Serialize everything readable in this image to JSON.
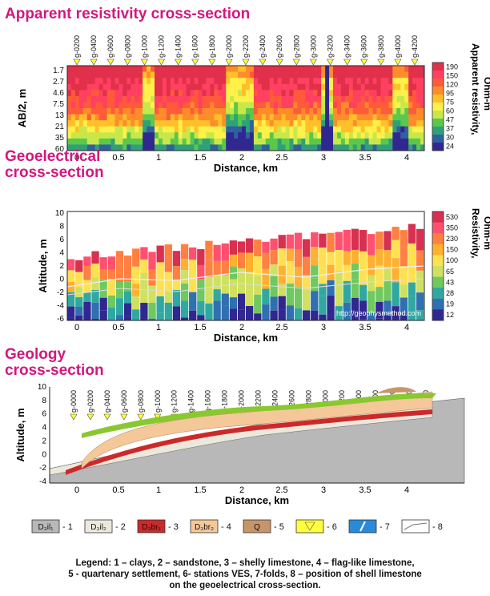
{
  "chart_data": [
    {
      "type": "heatmap",
      "title": "Apparent resistivity cross-section",
      "xlabel": "Distance, km",
      "ylabel": "AB/2, m",
      "xlim": [
        -0.5,
        4.25
      ],
      "x_ticks": [
        "0",
        "0.5",
        "1",
        "1.5",
        "2",
        "2.5",
        "3",
        "3.5",
        "4"
      ],
      "y_ticks": [
        "1.7",
        "2.7",
        "4.6",
        "7.5",
        "13",
        "21",
        "35",
        "60"
      ],
      "stations": [
        "g-0200",
        "g-0400",
        "g-0600",
        "g-0800",
        "g-1000",
        "g-1200",
        "g-1400",
        "g-1600",
        "g-1800",
        "g-2000",
        "g-2200",
        "g-2400",
        "g-2600",
        "g-2800",
        "g-3000",
        "g-3200",
        "g-3400",
        "g-3600",
        "g-3800",
        "g-4000",
        "g-4200"
      ],
      "colorbar": {
        "label_1": "Apparent resistivity,",
        "label_2": "Ohm-m",
        "ticks": [
          "190",
          "150",
          "120",
          "95",
          "75",
          "60",
          "47",
          "37",
          "30",
          "24"
        ],
        "colors": [
          "#e0304a",
          "#ff4060",
          "#ff5a3a",
          "#ff8c2a",
          "#ffc02a",
          "#fff04a",
          "#c8e84a",
          "#5ac84a",
          "#30a07a",
          "#3060a0",
          "#302890"
        ]
      }
    },
    {
      "type": "heatmap",
      "title_line1": "Geoelectrical",
      "title_line2": "cross-section",
      "xlabel": "Distance, km",
      "ylabel": "Altitude, m",
      "ylim": [
        -7,
        10
      ],
      "x_ticks": [
        "0",
        "0.5",
        "1",
        "1.5",
        "2",
        "2.5",
        "3",
        "3.5",
        "4"
      ],
      "y_ticks": [
        "10",
        "8",
        "6",
        "4",
        "2",
        "0",
        "-2",
        "-4",
        "-6"
      ],
      "stations": [
        "g-0200",
        "g-0400",
        "g-0600",
        "g-0800",
        "g-1000",
        "g-1200",
        "g-1400",
        "g-1600",
        "g-1800",
        "g-2000",
        "g-2200",
        "g-2400",
        "g-2600",
        "g-2800",
        "g-3000",
        "g-3200",
        "g-3400",
        "g-3600",
        "g-3800",
        "g-4000",
        "g-4200"
      ],
      "watermark": "http://geophysmethod.com",
      "colorbar": {
        "label_1": "Resistivity,",
        "label_2": "Ohm-m",
        "ticks": [
          "530",
          "350",
          "230",
          "150",
          "100",
          "65",
          "43",
          "28",
          "19",
          "12"
        ],
        "colors": [
          "#d83050",
          "#ff5070",
          "#ff8040",
          "#ffb030",
          "#ffe050",
          "#d0e060",
          "#70c860",
          "#30a8a0",
          "#3070b0",
          "#302890"
        ]
      }
    },
    {
      "type": "area",
      "title_line1": "Geology",
      "title_line2": "cross-section",
      "xlabel": "Distance, km",
      "ylabel": "Altitude, m",
      "ylim": [
        -5,
        10
      ],
      "x_ticks": [
        "0",
        "0.5",
        "1",
        "1.5",
        "2",
        "2.5",
        "3",
        "3.5",
        "4"
      ],
      "y_ticks": [
        "10",
        "8",
        "6",
        "4",
        "2",
        "0",
        "-2",
        "-4"
      ],
      "stations": [
        "g-0000",
        "g-0200",
        "g-0400",
        "g-0600",
        "g-0800",
        "g-1000",
        "g-1200",
        "g-1400",
        "g-1600",
        "g-1800",
        "g-2000",
        "g-2200",
        "g-2400",
        "g-2600",
        "g-2800",
        "g-3000",
        "g-3200",
        "g-3400",
        "g-3600",
        "g-3800",
        "g-4000",
        "g-4200"
      ]
    }
  ],
  "legend": {
    "line1": "Legend: 1 – clays, 2 – sandstone, 3 – shelly limestone, 4 – flag-like limestone,",
    "line2": "5 - quartenary settlement, 6- stations VES, 7-folds, 8 – position of shell limestone",
    "line3": "on the geoelectrical cross-section.",
    "items": [
      {
        "symbol": "D₃il₁",
        "label": "- 1",
        "color": "#b8b8b8"
      },
      {
        "symbol": "D₃il₂",
        "label": "- 2",
        "color": "#ece8dc"
      },
      {
        "symbol": "D₃br₁",
        "label": "- 3",
        "color": "#cc2a2a"
      },
      {
        "symbol": "D₃br₂",
        "label": "- 4",
        "color": "#f5c89a"
      },
      {
        "symbol": "Q",
        "label": "- 5",
        "color": "#c8956a"
      },
      {
        "symbol": "",
        "label": "- 6",
        "color": "#ffff40"
      },
      {
        "symbol": "",
        "label": "- 7",
        "color": "#2a8ad8"
      },
      {
        "symbol": "",
        "label": "- 8",
        "color": "#ffffff"
      }
    ]
  }
}
